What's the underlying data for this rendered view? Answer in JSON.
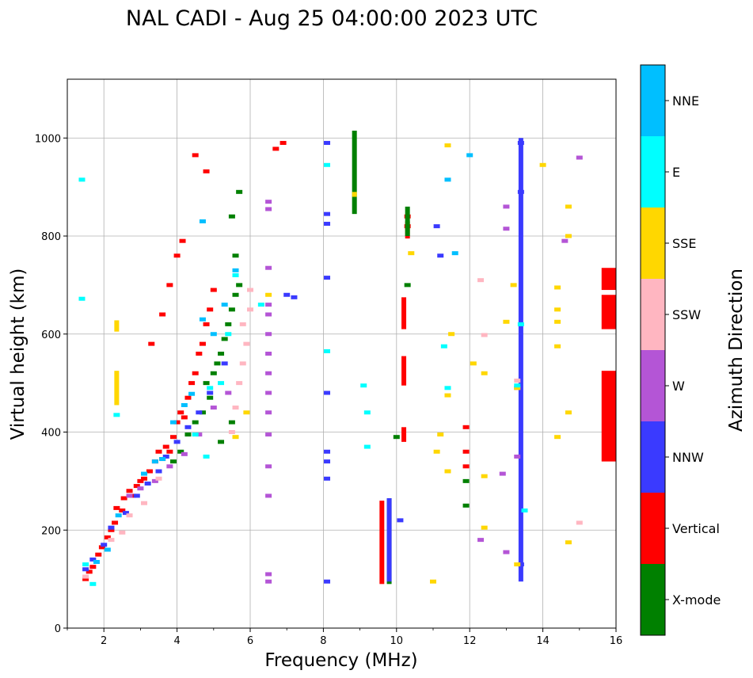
{
  "chart_data": {
    "type": "scatter",
    "title": "NAL CADI - Aug 25 04:00:00 2023 UTC",
    "xlabel": "Frequency (MHz)",
    "ylabel": "Virtual height (km)",
    "xlim": [
      1,
      16
    ],
    "ylim": [
      0,
      1120
    ],
    "xticks": [
      "2",
      "4",
      "6",
      "8",
      "10",
      "12",
      "14",
      "16"
    ],
    "yticks": [
      "0",
      "200",
      "400",
      "600",
      "800",
      "1000"
    ],
    "grid": true,
    "colorbar": {
      "label": "Azimuth Direction",
      "categories": [
        {
          "name": "X-mode",
          "color": "#008000"
        },
        {
          "name": "Vertical",
          "color": "#ff0000"
        },
        {
          "name": "NNW",
          "color": "#3a3aff"
        },
        {
          "name": "W",
          "color": "#b455d6"
        },
        {
          "name": "SSW",
          "color": "#ffb6c1"
        },
        {
          "name": "SSE",
          "color": "#ffd700"
        },
        {
          "name": "E",
          "color": "#00ffff"
        },
        {
          "name": "NNE",
          "color": "#00bfff"
        }
      ]
    },
    "series": [
      {
        "name": "Vertical",
        "points": [
          [
            1.5,
            100
          ],
          [
            1.6,
            115
          ],
          [
            1.7,
            125
          ],
          [
            1.85,
            150
          ],
          [
            1.95,
            165
          ],
          [
            2.1,
            185
          ],
          [
            2.2,
            200
          ],
          [
            2.3,
            215
          ],
          [
            2.35,
            245
          ],
          [
            2.5,
            240
          ],
          [
            2.55,
            265
          ],
          [
            2.7,
            280
          ],
          [
            2.8,
            270
          ],
          [
            2.9,
            290
          ],
          [
            3.0,
            300
          ],
          [
            3.1,
            305
          ],
          [
            3.25,
            320
          ],
          [
            3.4,
            340
          ],
          [
            3.5,
            360
          ],
          [
            3.6,
            345
          ],
          [
            3.7,
            370
          ],
          [
            3.8,
            360
          ],
          [
            3.9,
            390
          ],
          [
            4.0,
            420
          ],
          [
            4.1,
            440
          ],
          [
            4.2,
            430
          ],
          [
            4.3,
            470
          ],
          [
            4.4,
            500
          ],
          [
            4.5,
            520
          ],
          [
            4.6,
            560
          ],
          [
            4.7,
            580
          ],
          [
            4.8,
            620
          ],
          [
            4.9,
            650
          ],
          [
            5.0,
            690
          ],
          [
            3.3,
            580
          ],
          [
            3.6,
            640
          ],
          [
            3.8,
            700
          ],
          [
            4.0,
            760
          ],
          [
            4.15,
            790
          ],
          [
            4.5,
            965
          ],
          [
            4.8,
            932
          ],
          [
            6.7,
            978
          ],
          [
            6.9,
            990
          ],
          [
            10.3,
            820
          ],
          [
            10.3,
            840
          ],
          [
            11.9,
            330
          ],
          [
            11.9,
            360
          ],
          [
            11.9,
            410
          ]
        ],
        "segments": [
          [
            9.6,
            90,
            260
          ],
          [
            10.2,
            380,
            410
          ],
          [
            10.2,
            495,
            555
          ],
          [
            10.2,
            610,
            675
          ],
          [
            10.3,
            795,
            830
          ],
          [
            15.8,
            340,
            525
          ],
          [
            15.8,
            610,
            680
          ],
          [
            15.8,
            690,
            735
          ]
        ]
      },
      {
        "name": "X-mode",
        "points": [
          [
            3.9,
            340
          ],
          [
            4.1,
            360
          ],
          [
            4.3,
            395
          ],
          [
            4.5,
            420
          ],
          [
            4.7,
            440
          ],
          [
            4.8,
            500
          ],
          [
            4.9,
            470
          ],
          [
            5.0,
            520
          ],
          [
            5.1,
            540
          ],
          [
            5.2,
            560
          ],
          [
            5.3,
            590
          ],
          [
            5.4,
            620
          ],
          [
            5.5,
            650
          ],
          [
            5.6,
            680
          ],
          [
            5.7,
            700
          ],
          [
            5.2,
            380
          ],
          [
            5.5,
            420
          ],
          [
            5.6,
            760
          ],
          [
            5.5,
            840
          ],
          [
            5.7,
            890
          ],
          [
            10.3,
            700
          ],
          [
            10.0,
            390
          ],
          [
            11.9,
            250
          ],
          [
            11.9,
            300
          ]
        ],
        "segments": [
          [
            8.85,
            845,
            1015
          ],
          [
            10.3,
            800,
            860
          ],
          [
            9.8,
            90,
            265
          ]
        ]
      },
      {
        "name": "NNW",
        "points": [
          [
            1.5,
            120
          ],
          [
            1.7,
            140
          ],
          [
            2.0,
            170
          ],
          [
            2.2,
            205
          ],
          [
            2.6,
            235
          ],
          [
            2.9,
            270
          ],
          [
            3.2,
            295
          ],
          [
            3.5,
            320
          ],
          [
            3.7,
            350
          ],
          [
            4.0,
            380
          ],
          [
            4.3,
            410
          ],
          [
            4.6,
            440
          ],
          [
            4.9,
            480
          ],
          [
            5.3,
            540
          ],
          [
            7.0,
            680
          ],
          [
            7.2,
            675
          ],
          [
            8.1,
            990
          ],
          [
            8.1,
            845
          ],
          [
            8.1,
            825
          ],
          [
            8.1,
            715
          ],
          [
            8.1,
            480
          ],
          [
            8.1,
            360
          ],
          [
            8.1,
            340
          ],
          [
            8.1,
            305
          ],
          [
            8.1,
            95
          ],
          [
            10.1,
            220
          ],
          [
            11.1,
            820
          ],
          [
            11.2,
            760
          ],
          [
            13.4,
            130
          ],
          [
            13.4,
            890
          ],
          [
            13.4,
            990
          ]
        ],
        "segments": [
          [
            13.4,
            95,
            1000
          ],
          [
            9.8,
            95,
            265
          ]
        ]
      },
      {
        "name": "W",
        "points": [
          [
            2.7,
            270
          ],
          [
            3.0,
            285
          ],
          [
            3.4,
            300
          ],
          [
            3.8,
            330
          ],
          [
            4.2,
            355
          ],
          [
            4.6,
            395
          ],
          [
            5.0,
            450
          ],
          [
            5.4,
            480
          ],
          [
            6.5,
            270
          ],
          [
            6.5,
            330
          ],
          [
            6.5,
            395
          ],
          [
            6.5,
            440
          ],
          [
            6.5,
            480
          ],
          [
            6.5,
            520
          ],
          [
            6.5,
            560
          ],
          [
            6.5,
            600
          ],
          [
            6.5,
            640
          ],
          [
            6.5,
            660
          ],
          [
            6.5,
            735
          ],
          [
            6.5,
            855
          ],
          [
            6.5,
            870
          ],
          [
            6.5,
            110
          ],
          [
            6.5,
            95
          ],
          [
            13.0,
            860
          ],
          [
            13.0,
            815
          ],
          [
            13.3,
            490
          ],
          [
            13.3,
            350
          ],
          [
            13.0,
            155
          ],
          [
            12.3,
            180
          ],
          [
            12.9,
            315
          ],
          [
            14.6,
            790
          ],
          [
            15.0,
            960
          ]
        ]
      },
      {
        "name": "SSW",
        "points": [
          [
            1.5,
            105
          ],
          [
            2.2,
            180
          ],
          [
            2.5,
            195
          ],
          [
            2.7,
            230
          ],
          [
            3.1,
            255
          ],
          [
            3.5,
            305
          ],
          [
            5.5,
            400
          ],
          [
            5.6,
            450
          ],
          [
            5.7,
            500
          ],
          [
            5.8,
            540
          ],
          [
            5.9,
            580
          ],
          [
            5.8,
            620
          ],
          [
            6.0,
            650
          ],
          [
            6.0,
            690
          ],
          [
            12.3,
            710
          ],
          [
            12.4,
            598
          ],
          [
            15.0,
            215
          ],
          [
            13.3,
            505
          ]
        ]
      },
      {
        "name": "SSE",
        "points": [
          [
            5.6,
            390
          ],
          [
            5.9,
            440
          ],
          [
            6.5,
            680
          ],
          [
            10.4,
            765
          ],
          [
            11.4,
            985
          ],
          [
            11.5,
            600
          ],
          [
            11.4,
            475
          ],
          [
            11.2,
            395
          ],
          [
            11.1,
            360
          ],
          [
            11.4,
            320
          ],
          [
            11.0,
            95
          ],
          [
            12.1,
            540
          ],
          [
            12.4,
            520
          ],
          [
            12.4,
            310
          ],
          [
            12.4,
            205
          ],
          [
            13.0,
            625
          ],
          [
            13.2,
            700
          ],
          [
            13.3,
            130
          ],
          [
            14.4,
            695
          ],
          [
            14.4,
            650
          ],
          [
            14.4,
            625
          ],
          [
            14.4,
            575
          ],
          [
            14.4,
            390
          ],
          [
            14.7,
            440
          ],
          [
            14.7,
            175
          ],
          [
            14.7,
            860
          ],
          [
            14.7,
            800
          ],
          [
            14.0,
            945
          ],
          [
            13.3,
            490
          ]
        ],
        "segments": [
          [
            2.35,
            605,
            628
          ],
          [
            2.35,
            455,
            525
          ],
          [
            8.85,
            880,
            890
          ]
        ]
      },
      {
        "name": "E",
        "points": [
          [
            1.4,
            672
          ],
          [
            1.4,
            915
          ],
          [
            1.5,
            130
          ],
          [
            1.7,
            90
          ],
          [
            2.35,
            435
          ],
          [
            4.5,
            395
          ],
          [
            4.8,
            350
          ],
          [
            4.9,
            490
          ],
          [
            5.2,
            500
          ],
          [
            5.4,
            600
          ],
          [
            5.6,
            720
          ],
          [
            6.3,
            660
          ],
          [
            8.1,
            945
          ],
          [
            8.1,
            565
          ],
          [
            9.1,
            495
          ],
          [
            9.2,
            440
          ],
          [
            9.2,
            370
          ],
          [
            11.4,
            490
          ],
          [
            11.3,
            575
          ],
          [
            13.3,
            495
          ],
          [
            13.4,
            620
          ],
          [
            13.5,
            240
          ]
        ]
      },
      {
        "name": "NNE",
        "points": [
          [
            1.8,
            135
          ],
          [
            2.1,
            160
          ],
          [
            2.4,
            230
          ],
          [
            3.1,
            315
          ],
          [
            3.4,
            340
          ],
          [
            3.6,
            345
          ],
          [
            3.9,
            420
          ],
          [
            4.2,
            455
          ],
          [
            4.4,
            478
          ],
          [
            4.7,
            630
          ],
          [
            5.0,
            600
          ],
          [
            5.3,
            660
          ],
          [
            5.6,
            730
          ],
          [
            4.7,
            830
          ],
          [
            11.6,
            765
          ],
          [
            11.4,
            915
          ],
          [
            12.0,
            965
          ]
        ]
      }
    ]
  }
}
